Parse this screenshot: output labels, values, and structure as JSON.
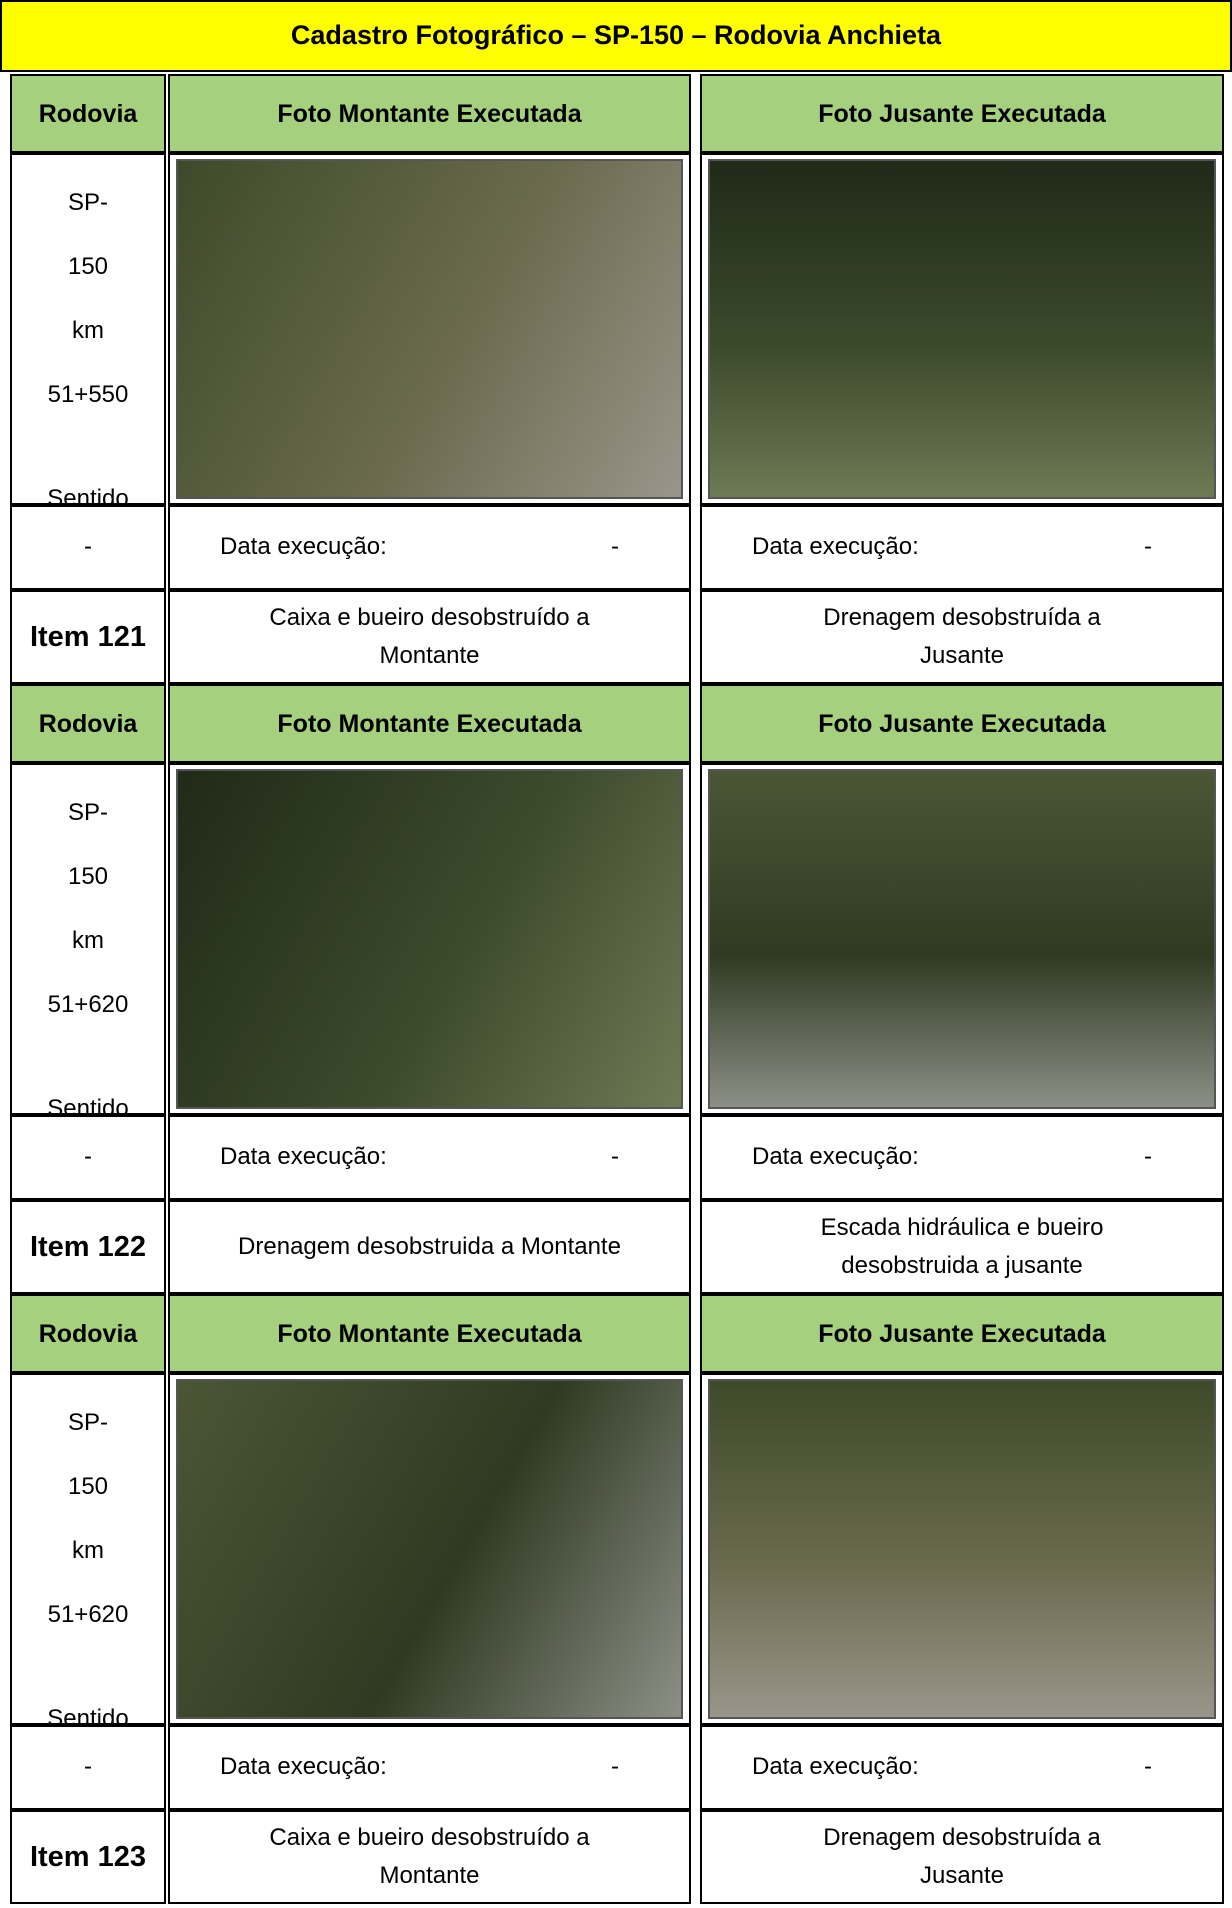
{
  "header": {
    "title": "Cadastro Fotográfico – SP-150 – Rodovia Anchieta"
  },
  "blocks": [
    {
      "col_rodovia": "Rodovia",
      "col_montante": "Foto Montante Executada",
      "col_jusante": "Foto Jusante Executada",
      "location": [
        "SP-",
        "150",
        "km",
        "51+550",
        "Sentido"
      ],
      "direction": "-",
      "montante_date_label": "Data execução:",
      "montante_date": "-",
      "jusante_date_label": "Data execução:",
      "jusante_date": "-",
      "item": "Item 121",
      "montante_caption": "Caixa e bueiro desobstruído a Montante",
      "jusante_caption": "Drenagem desobstruída a Jusante"
    },
    {
      "col_rodovia": "Rodovia",
      "col_montante": "Foto Montante Executada",
      "col_jusante": "Foto Jusante Executada",
      "location": [
        "SP-",
        "150",
        "km",
        "51+620",
        "Sentido"
      ],
      "direction": "-",
      "montante_date_label": "Data execução:",
      "montante_date": "-",
      "jusante_date_label": "Data execução:",
      "jusante_date": "-",
      "item": "Item 122",
      "montante_caption": "Drenagem desobstruida a Montante",
      "jusante_caption": "Escada hidráulica e bueiro desobstruida a jusante"
    },
    {
      "col_rodovia": "Rodovia",
      "col_montante": "Foto Montante Executada",
      "col_jusante": "Foto Jusante Executada",
      "location": [
        "SP-",
        "150",
        "km",
        "51+620",
        "Sentido"
      ],
      "direction": "-",
      "montante_date_label": "Data execução:",
      "montante_date": "-",
      "jusante_date_label": "Data execução:",
      "jusante_date": "-",
      "item": "Item 123",
      "montante_caption": "Caixa e bueiro desobstruído a Montante",
      "jusante_caption": "Drenagem desobstruída a Jusante"
    }
  ]
}
